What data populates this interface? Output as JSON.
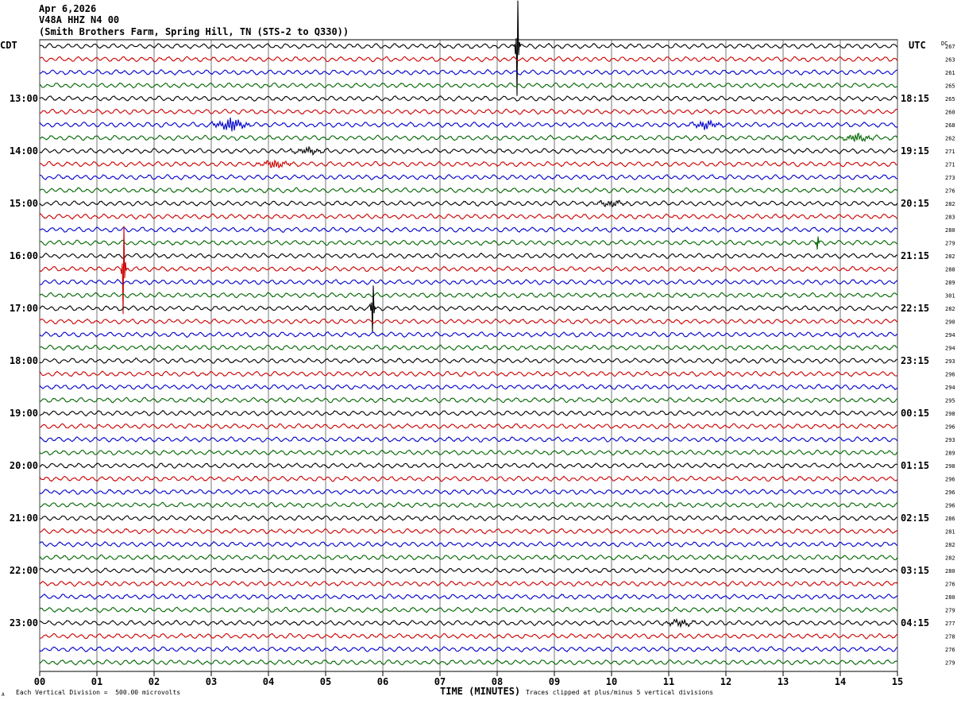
{
  "header": {
    "date": "Apr 6,2026",
    "station": "V48A HHZ N4 00",
    "location": "(Smith Brothers Farm, Spring Hill, TN (STS-2 to Q330))"
  },
  "labels": {
    "left_tz": "CDT",
    "right_tz": "UTC",
    "dc": "DC",
    "xlabel": "TIME (MINUTES)",
    "scale_note": "Each Vertical Division =  500.00 microvolts",
    "clip_note": "Traces clipped at plus/minus 5 vertical divisions",
    "corner_mark": "A"
  },
  "colors": {
    "trace_cycle": [
      "#000000",
      "#cc0000",
      "#0000cc",
      "#006600"
    ],
    "grid": "#000000"
  },
  "chart_data": {
    "type": "line",
    "subtype": "helicorder",
    "x_ticks": [
      "00",
      "01",
      "02",
      "03",
      "04",
      "05",
      "06",
      "07",
      "08",
      "09",
      "10",
      "11",
      "12",
      "13",
      "14",
      "15"
    ],
    "xlim": [
      0,
      15
    ],
    "rows_per_hour": 4,
    "trace_count": 48,
    "left_hour_labels": [
      "13:00",
      "14:00",
      "15:00",
      "16:00",
      "17:00",
      "18:00",
      "19:00",
      "20:00",
      "21:00",
      "22:00",
      "23:00"
    ],
    "right_hour_labels": [
      "18:15",
      "19:15",
      "20:15",
      "21:15",
      "22:15",
      "23:15",
      "00:15",
      "01:15",
      "02:15",
      "03:15",
      "04:15"
    ],
    "dc_offsets": [
      267,
      263,
      261,
      265,
      265,
      260,
      268,
      262,
      271,
      271,
      273,
      276,
      282,
      283,
      280,
      279,
      282,
      288,
      289,
      301,
      282,
      290,
      294,
      294,
      293,
      296,
      294,
      295,
      298,
      296,
      293,
      289,
      298,
      296,
      296,
      296,
      286,
      281,
      282,
      282,
      280,
      276,
      280,
      279,
      277,
      278,
      276,
      279
    ],
    "events": [
      {
        "row": 0,
        "minute": 8.35,
        "amp": 60,
        "kind": "spike"
      },
      {
        "row": 6,
        "minute": 3.35,
        "amp": 9,
        "kind": "burst"
      },
      {
        "row": 6,
        "minute": 11.65,
        "amp": 5,
        "kind": "burst"
      },
      {
        "row": 7,
        "minute": 14.3,
        "amp": 5,
        "kind": "burst"
      },
      {
        "row": 8,
        "minute": 4.7,
        "amp": 4,
        "kind": "burst"
      },
      {
        "row": 9,
        "minute": 4.1,
        "amp": 5,
        "kind": "burst"
      },
      {
        "row": 12,
        "minute": 10.0,
        "amp": 4,
        "kind": "burst"
      },
      {
        "row": 15,
        "minute": 13.6,
        "amp": 8,
        "kind": "spike"
      },
      {
        "row": 17,
        "minute": 1.47,
        "amp": 55,
        "kind": "spike"
      },
      {
        "row": 20,
        "minute": 5.82,
        "amp": 30,
        "kind": "spike"
      },
      {
        "row": 44,
        "minute": 11.2,
        "amp": 4,
        "kind": "burst"
      }
    ]
  }
}
